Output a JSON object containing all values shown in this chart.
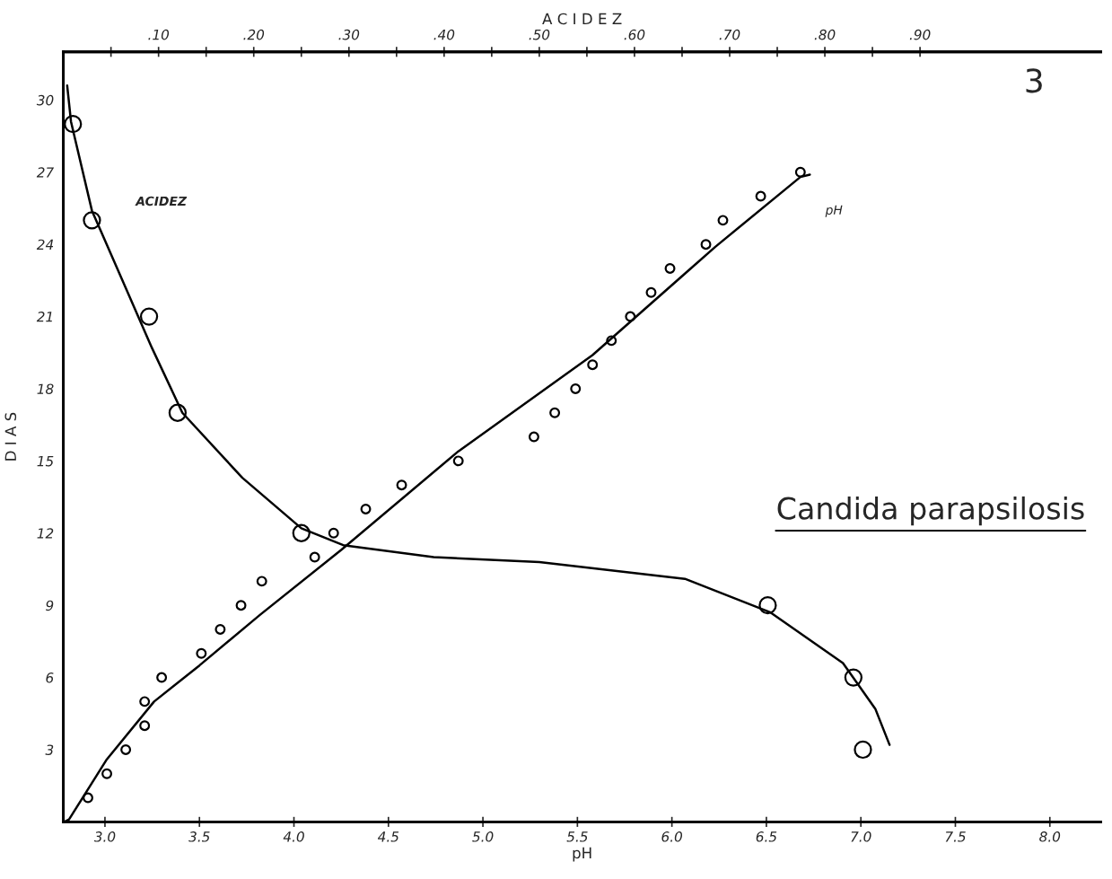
{
  "chart_data": {
    "type": "scatter",
    "title": "Candida parapsilosis",
    "xlabel": "pH",
    "x2label": "A C I D E Z",
    "ylabel": "D I A S",
    "xlim": [
      2.78,
      8.27
    ],
    "xticks": [
      {
        "value": 3.0,
        "label": "3.0"
      },
      {
        "value": 3.5,
        "label": "3.5"
      },
      {
        "value": 4.0,
        "label": "4.0"
      },
      {
        "value": 4.5,
        "label": "4.5"
      },
      {
        "value": 5.0,
        "label": "5.0"
      },
      {
        "value": 5.5,
        "label": "5.5"
      },
      {
        "value": 6.0,
        "label": "6.0"
      },
      {
        "value": 6.5,
        "label": "6.5"
      },
      {
        "value": 7.0,
        "label": "7.0"
      },
      {
        "value": 7.5,
        "label": "7.5"
      },
      {
        "value": 8.0,
        "label": "8.0"
      }
    ],
    "x2lim": [
      0,
      1.09
    ],
    "x2ticks": [
      {
        "value": 0.05,
        "label": null
      },
      {
        "value": 0.1,
        "label": ".10"
      },
      {
        "value": 0.15,
        "label": null
      },
      {
        "value": 0.2,
        "label": ".20"
      },
      {
        "value": 0.25,
        "label": null
      },
      {
        "value": 0.3,
        "label": ".30"
      },
      {
        "value": 0.35,
        "label": null
      },
      {
        "value": 0.4,
        "label": ".40"
      },
      {
        "value": 0.45,
        "label": null
      },
      {
        "value": 0.5,
        "label": ".50"
      },
      {
        "value": 0.55,
        "label": null
      },
      {
        "value": 0.6,
        "label": ".60"
      },
      {
        "value": 0.65,
        "label": null
      },
      {
        "value": 0.7,
        "label": ".70"
      },
      {
        "value": 0.75,
        "label": null
      },
      {
        "value": 0.8,
        "label": ".80"
      },
      {
        "value": 0.85,
        "label": null
      },
      {
        "value": 0.9,
        "label": ".90"
      }
    ],
    "ylim": [
      0,
      32
    ],
    "yticks": [
      3,
      6,
      9,
      12,
      15,
      18,
      21,
      24,
      27,
      30
    ],
    "grid": false,
    "legend": false,
    "marker": "circle",
    "annotations": [
      "3",
      "ACIDEZ",
      "pH"
    ],
    "series": [
      {
        "color": "#000000",
        "x": [
          2.91,
          3.01,
          3.11,
          3.21,
          3.21,
          3.3,
          3.51,
          3.61,
          3.72,
          3.83,
          4.11,
          4.21,
          4.38,
          4.57,
          4.87,
          5.27,
          5.38,
          5.49,
          5.58,
          5.68,
          5.78,
          5.89,
          5.99,
          6.18,
          6.27,
          6.47,
          6.68
        ],
        "values": [
          1,
          2,
          3,
          5,
          4,
          6,
          7,
          8,
          9,
          10,
          11,
          12,
          13,
          14,
          15,
          16,
          17,
          18,
          19,
          20,
          21,
          22,
          23,
          24,
          25,
          26,
          27
        ]
      },
      {
        "type": "line",
        "color": "#000000",
        "marker": "none",
        "x": [
          2.785,
          2.81,
          3.01,
          3.26,
          3.5,
          3.82,
          4.25,
          4.87,
          5.58,
          6.23,
          6.68,
          6.73
        ],
        "values": [
          0,
          0.1,
          2.6,
          5.0,
          6.5,
          8.6,
          11.3,
          15.4,
          19.4,
          23.9,
          26.8,
          26.9
        ]
      },
      {
        "color": "#000000",
        "axis": "x2",
        "x": [
          0.01,
          0.03,
          0.09,
          0.12,
          0.25,
          0.74,
          0.83,
          0.84
        ],
        "values": [
          29,
          25,
          21,
          17,
          12,
          9,
          6,
          3
        ]
      },
      {
        "type": "line",
        "color": "#000000",
        "axis": "x2",
        "marker": "none",
        "x": [
          0.004,
          0.008,
          0.03,
          0.061,
          0.093,
          0.125,
          0.188,
          0.25,
          0.294,
          0.389,
          0.5,
          0.653,
          0.743,
          0.819,
          0.853,
          0.868
        ],
        "values": [
          30.6,
          29.1,
          25.4,
          22.6,
          19.7,
          17.0,
          14.3,
          12.2,
          11.5,
          11.0,
          10.8,
          10.1,
          8.7,
          6.6,
          4.7,
          3.2
        ]
      }
    ]
  }
}
